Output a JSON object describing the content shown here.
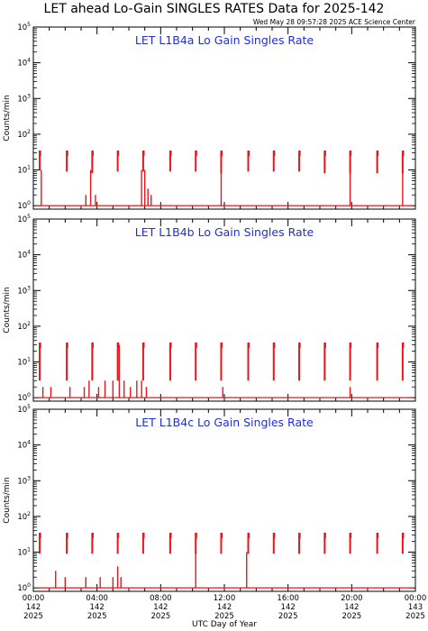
{
  "title": "LET ahead Lo-Gain SINGLES RATES Data for 2025-142",
  "timestamp": "Wed May 28 09:57:28 2025 ACE Science Center",
  "colors": {
    "data": "#e8161b",
    "panel_title": "#1f2ee0",
    "axes": "#000000"
  },
  "chart_data": [
    {
      "type": "line",
      "title": "LET L1B4a Lo Gain Singles Rate",
      "ylabel": "Counts/min",
      "yscale": "log",
      "ylim": [
        0.8,
        100000
      ],
      "xlim": [
        0,
        24
      ],
      "baseline": 1,
      "spikes": [
        {
          "x": 0.4,
          "y": 35,
          "low": 10
        },
        {
          "x": 2.1,
          "y": 35,
          "low": 9
        },
        {
          "x": 3.7,
          "y": 35,
          "low": 8
        },
        {
          "x": 5.3,
          "y": 35,
          "low": 9
        },
        {
          "x": 6.9,
          "y": 35,
          "low": 9
        },
        {
          "x": 8.6,
          "y": 35,
          "low": 9
        },
        {
          "x": 10.2,
          "y": 35,
          "low": 9
        },
        {
          "x": 11.8,
          "y": 35,
          "low": 8
        },
        {
          "x": 13.5,
          "y": 35,
          "low": 9
        },
        {
          "x": 15.1,
          "y": 35,
          "low": 9
        },
        {
          "x": 16.7,
          "y": 35,
          "low": 9
        },
        {
          "x": 18.3,
          "y": 35,
          "low": 8
        },
        {
          "x": 19.9,
          "y": 35,
          "low": 8
        },
        {
          "x": 21.6,
          "y": 35,
          "low": 8
        },
        {
          "x": 23.2,
          "y": 35,
          "low": 8
        }
      ],
      "bursts": [
        {
          "x": 0.5,
          "y": 10
        },
        {
          "x": 3.3,
          "y": 2
        },
        {
          "x": 3.6,
          "y": 10
        },
        {
          "x": 3.9,
          "y": 2
        },
        {
          "x": 6.8,
          "y": 10
        },
        {
          "x": 7.0,
          "y": 10
        },
        {
          "x": 7.2,
          "y": 3
        },
        {
          "x": 7.4,
          "y": 2
        },
        {
          "x": 11.8,
          "y": 10
        },
        {
          "x": 19.9,
          "y": 10
        },
        {
          "x": 23.2,
          "y": 10
        }
      ]
    },
    {
      "type": "line",
      "title": "LET L1B4b Lo Gain Singles Rate",
      "ylabel": "Counts/min",
      "yscale": "log",
      "ylim": [
        0.8,
        100000
      ],
      "xlim": [
        0,
        24
      ],
      "baseline": 1,
      "spikes": [
        {
          "x": 0.4,
          "y": 35,
          "low": 3
        },
        {
          "x": 2.1,
          "y": 35,
          "low": 3
        },
        {
          "x": 3.7,
          "y": 35,
          "low": 3
        },
        {
          "x": 5.3,
          "y": 35,
          "low": 3
        },
        {
          "x": 6.9,
          "y": 35,
          "low": 3
        },
        {
          "x": 8.6,
          "y": 35,
          "low": 3
        },
        {
          "x": 10.2,
          "y": 35,
          "low": 3
        },
        {
          "x": 11.8,
          "y": 35,
          "low": 3
        },
        {
          "x": 13.5,
          "y": 35,
          "low": 3
        },
        {
          "x": 15.1,
          "y": 35,
          "low": 3
        },
        {
          "x": 16.7,
          "y": 35,
          "low": 3
        },
        {
          "x": 18.3,
          "y": 35,
          "low": 3
        },
        {
          "x": 19.9,
          "y": 35,
          "low": 3
        },
        {
          "x": 21.6,
          "y": 35,
          "low": 3
        },
        {
          "x": 23.2,
          "y": 35,
          "low": 3
        }
      ],
      "bursts": [
        {
          "x": 0.6,
          "y": 2
        },
        {
          "x": 1.1,
          "y": 2
        },
        {
          "x": 2.3,
          "y": 2
        },
        {
          "x": 3.2,
          "y": 2
        },
        {
          "x": 3.5,
          "y": 3
        },
        {
          "x": 4.1,
          "y": 2
        },
        {
          "x": 4.5,
          "y": 3
        },
        {
          "x": 5.0,
          "y": 3
        },
        {
          "x": 5.4,
          "y": 30
        },
        {
          "x": 5.7,
          "y": 3
        },
        {
          "x": 6.1,
          "y": 2
        },
        {
          "x": 6.5,
          "y": 3
        },
        {
          "x": 6.8,
          "y": 3
        },
        {
          "x": 7.1,
          "y": 2
        },
        {
          "x": 11.9,
          "y": 2
        },
        {
          "x": 19.9,
          "y": 2
        }
      ]
    },
    {
      "type": "line",
      "title": "LET L1B4c Lo Gain Singles Rate",
      "ylabel": "Counts/min",
      "yscale": "log",
      "ylim": [
        0.8,
        100000
      ],
      "xlim": [
        0,
        24
      ],
      "baseline": 1,
      "xlabel": "UTC Day of Year",
      "xticks": [
        {
          "time": "00:00",
          "day": "142",
          "year": "2025",
          "x": 0
        },
        {
          "time": "04:00",
          "day": "142",
          "year": "2025",
          "x": 4
        },
        {
          "time": "08:00",
          "day": "142",
          "year": "2025",
          "x": 8
        },
        {
          "time": "12:00",
          "day": "142",
          "year": "2025",
          "x": 12
        },
        {
          "time": "16:00",
          "day": "142",
          "year": "2025",
          "x": 16
        },
        {
          "time": "20:00",
          "day": "142",
          "year": "2025",
          "x": 20
        },
        {
          "time": "00:00",
          "day": "143",
          "year": "2025",
          "x": 24
        }
      ],
      "spikes": [
        {
          "x": 0.4,
          "y": 35,
          "low": 9
        },
        {
          "x": 2.1,
          "y": 35,
          "low": 9
        },
        {
          "x": 3.7,
          "y": 35,
          "low": 9
        },
        {
          "x": 5.3,
          "y": 35,
          "low": 9
        },
        {
          "x": 6.9,
          "y": 35,
          "low": 9
        },
        {
          "x": 8.6,
          "y": 35,
          "low": 9
        },
        {
          "x": 10.2,
          "y": 35,
          "low": 9
        },
        {
          "x": 11.8,
          "y": 35,
          "low": 9
        },
        {
          "x": 13.5,
          "y": 35,
          "low": 9
        },
        {
          "x": 15.1,
          "y": 35,
          "low": 9
        },
        {
          "x": 16.7,
          "y": 35,
          "low": 9
        },
        {
          "x": 18.3,
          "y": 35,
          "low": 9
        },
        {
          "x": 19.9,
          "y": 35,
          "low": 9
        },
        {
          "x": 21.6,
          "y": 35,
          "low": 9
        },
        {
          "x": 23.2,
          "y": 35,
          "low": 9
        }
      ],
      "bursts": [
        {
          "x": 1.4,
          "y": 3
        },
        {
          "x": 2.0,
          "y": 2
        },
        {
          "x": 3.3,
          "y": 2
        },
        {
          "x": 4.2,
          "y": 2
        },
        {
          "x": 5.0,
          "y": 2
        },
        {
          "x": 5.3,
          "y": 4
        },
        {
          "x": 5.5,
          "y": 2
        },
        {
          "x": 10.2,
          "y": 10
        },
        {
          "x": 13.4,
          "y": 10
        }
      ]
    }
  ]
}
